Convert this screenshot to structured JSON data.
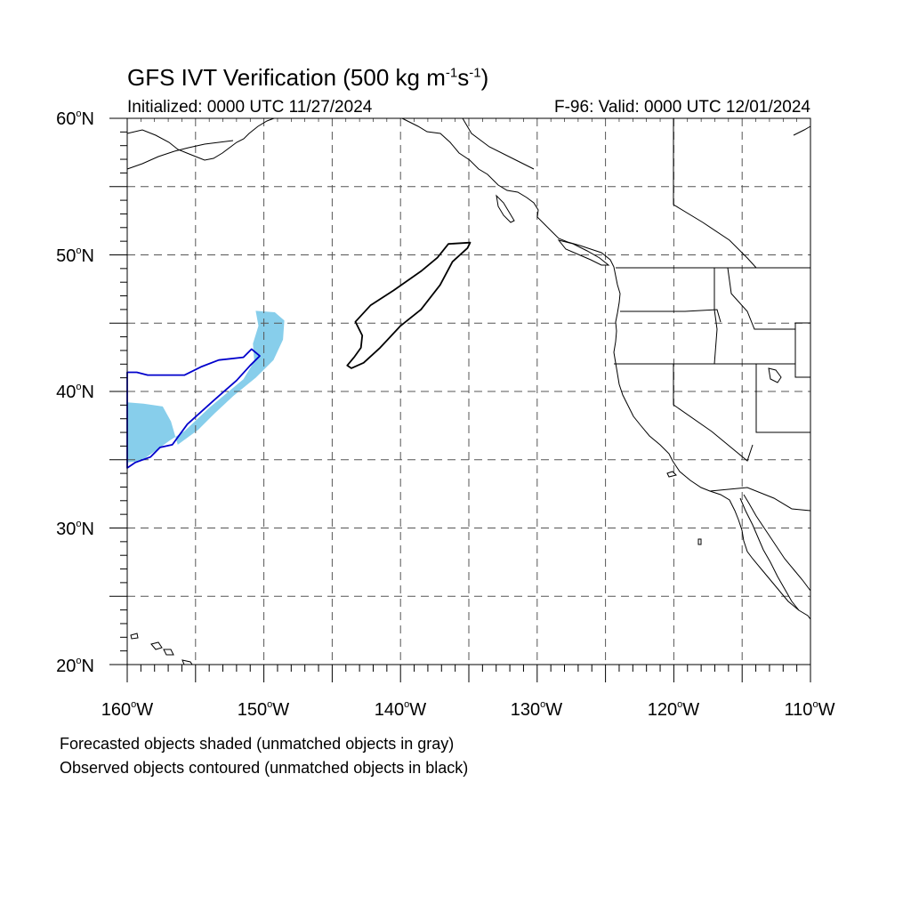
{
  "title": {
    "main": "GFS IVT Verification (500 kg m",
    "sup1": "-1",
    "mid": "s",
    "sup2": "-1",
    "end": ")"
  },
  "initialized": "Initialized: 0000 UTC 11/27/2024",
  "valid": "F-96: Valid: 0000 UTC 12/01/2024",
  "lat_labels": [
    {
      "deg": "60",
      "hem": "N"
    },
    {
      "deg": "50",
      "hem": "N"
    },
    {
      "deg": "40",
      "hem": "N"
    },
    {
      "deg": "30",
      "hem": "N"
    },
    {
      "deg": "20",
      "hem": "N"
    }
  ],
  "lon_labels": [
    {
      "deg": "160",
      "hem": "W"
    },
    {
      "deg": "150",
      "hem": "W"
    },
    {
      "deg": "140",
      "hem": "W"
    },
    {
      "deg": "130",
      "hem": "W"
    },
    {
      "deg": "120",
      "hem": "W"
    },
    {
      "deg": "110",
      "hem": "W"
    }
  ],
  "notes": {
    "forecast": "Forecasted objects shaded (unmatched objects in gray)",
    "observed": "Observed objects contoured (unmatched objects in black)"
  },
  "map_extent": {
    "lon_min": -160,
    "lon_max": -110,
    "lat_min": 20,
    "lat_max": 60
  },
  "colors": {
    "forecast_matched": "#87CEEB",
    "observed_matched": "#0000CC",
    "observed_unmatched": "#000000",
    "grid": "#555555"
  },
  "objects": {
    "forecast_shaded": [
      {
        "status": "matched",
        "polygon": [
          [
            -150.6,
            45.9
          ],
          [
            -149.2,
            45.8
          ],
          [
            -148.5,
            45.2
          ],
          [
            -148.6,
            43.8
          ],
          [
            -149.3,
            42.3
          ],
          [
            -150.6,
            41.0
          ],
          [
            -152.2,
            39.7
          ],
          [
            -153.6,
            38.4
          ],
          [
            -154.8,
            37.2
          ],
          [
            -156.3,
            36.1
          ],
          [
            -156.8,
            37.8
          ],
          [
            -157.4,
            38.9
          ],
          [
            -158.8,
            39.1
          ],
          [
            -160.0,
            39.2
          ],
          [
            -160.0,
            34.8
          ],
          [
            -159.0,
            34.9
          ],
          [
            -158.0,
            35.6
          ],
          [
            -156.9,
            36.4
          ],
          [
            -155.8,
            37.1
          ],
          [
            -154.0,
            38.8
          ],
          [
            -151.5,
            40.9
          ],
          [
            -150.7,
            42.2
          ],
          [
            -150.8,
            43.5
          ],
          [
            -150.4,
            44.8
          ]
        ]
      }
    ],
    "observed_contours": [
      {
        "status": "unmatched",
        "polygon": [
          [
            -136.5,
            50.8
          ],
          [
            -134.9,
            50.9
          ],
          [
            -135.1,
            50.5
          ],
          [
            -136.2,
            49.5
          ],
          [
            -137.1,
            47.8
          ],
          [
            -138.5,
            46.0
          ],
          [
            -140.0,
            44.8
          ],
          [
            -141.5,
            43.2
          ],
          [
            -142.7,
            42.1
          ],
          [
            -143.6,
            41.7
          ],
          [
            -143.9,
            41.9
          ],
          [
            -143.4,
            42.5
          ],
          [
            -142.9,
            43.2
          ],
          [
            -142.8,
            44.1
          ],
          [
            -143.3,
            45.1
          ],
          [
            -142.2,
            46.3
          ],
          [
            -140.5,
            47.4
          ],
          [
            -138.5,
            48.8
          ],
          [
            -137.3,
            49.8
          ]
        ]
      },
      {
        "status": "matched",
        "polygon": [
          [
            -160.0,
            41.4
          ],
          [
            -159.3,
            41.4
          ],
          [
            -158.5,
            41.2
          ],
          [
            -155.8,
            41.2
          ],
          [
            -154.6,
            41.8
          ],
          [
            -153.3,
            42.3
          ],
          [
            -151.5,
            42.5
          ],
          [
            -150.9,
            43.1
          ],
          [
            -150.3,
            42.6
          ],
          [
            -151.0,
            41.9
          ],
          [
            -152.0,
            40.8
          ],
          [
            -153.6,
            39.4
          ],
          [
            -155.6,
            37.6
          ],
          [
            -156.7,
            36.1
          ],
          [
            -157.6,
            35.9
          ],
          [
            -158.3,
            35.2
          ],
          [
            -159.4,
            34.8
          ],
          [
            -160.0,
            34.4
          ]
        ]
      }
    ]
  }
}
